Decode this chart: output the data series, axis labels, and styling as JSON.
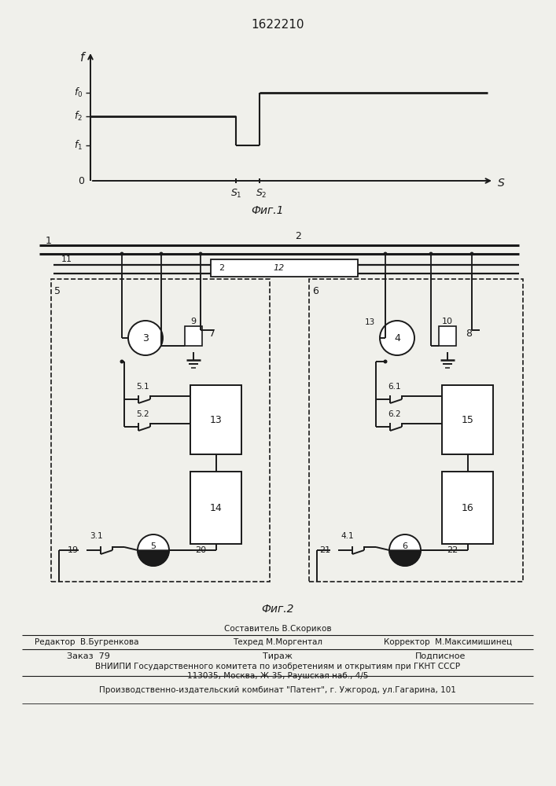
{
  "title": "1622210",
  "fig1_caption": "Фиг.1",
  "fig2_caption": "Фиг.2",
  "footer_line1_center_top": "Составитель В.Скориков",
  "footer_line1_left": "Редактор  В.Бугренкова",
  "footer_line1_center": "Техред М.Моргентал",
  "footer_line1_right": "Корректор  М.Максимишинец",
  "footer_line2_col1": "Заказ  79",
  "footer_line2_col2": "Тираж",
  "footer_line2_col3": "Подписное",
  "footer_line3": "ВНИИПИ Государственного комитета по изобретениям и открытиям при ГКНТ СССР",
  "footer_line4": "113035, Москва, Ж-35, Раушская наб., 4/5",
  "footer_line5": "Производственно-издательский комбинат \"Патент\", г. Ужгород, ул.Гагарина, 101",
  "bg_color": "#f0f0eb",
  "line_color": "#1a1a1a"
}
